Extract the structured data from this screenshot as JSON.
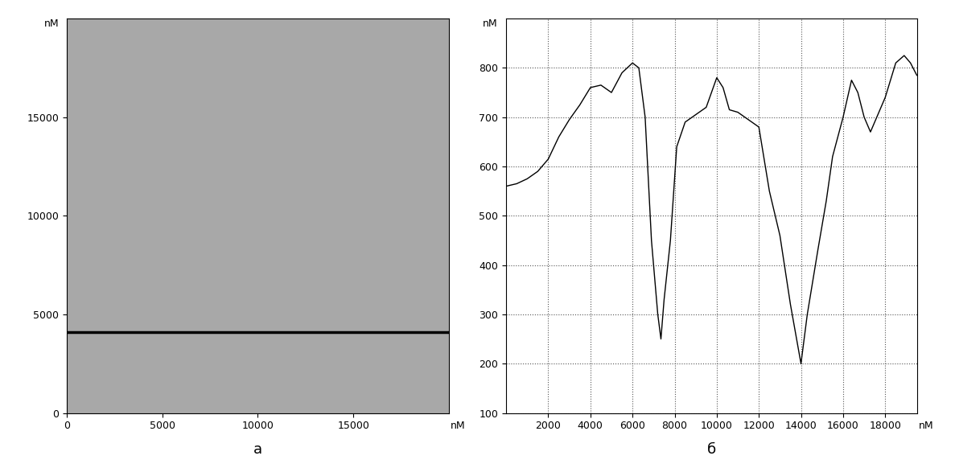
{
  "chart_data": [
    {
      "type": "line",
      "title": "а",
      "x_label": "nM",
      "y_label": "nM",
      "x": [
        0,
        20000
      ],
      "values": [
        4100,
        4100
      ],
      "color": "#000000",
      "xlim": [
        0,
        20000
      ],
      "ylim": [
        0,
        20000
      ],
      "xticks": [
        0,
        5000,
        10000,
        15000
      ],
      "yticks": [
        0,
        5000,
        10000,
        15000
      ],
      "grid": false
    },
    {
      "type": "line",
      "title": "б",
      "x_label": "nM",
      "y_label": "nM",
      "x": [
        0,
        500,
        1000,
        1500,
        2000,
        2500,
        3000,
        3500,
        4000,
        4500,
        5000,
        5500,
        6000,
        6300,
        6600,
        6900,
        7200,
        7350,
        7500,
        7800,
        8100,
        8500,
        9000,
        9500,
        10000,
        10300,
        10600,
        11000,
        11500,
        12000,
        12500,
        13000,
        13500,
        14000,
        14300,
        14800,
        15200,
        15500,
        16000,
        16400,
        16700,
        17000,
        17300,
        17600,
        18000,
        18500,
        18900,
        19200,
        19500
      ],
      "values": [
        560,
        565,
        575,
        590,
        615,
        660,
        695,
        725,
        760,
        765,
        750,
        790,
        810,
        800,
        700,
        450,
        300,
        250,
        330,
        450,
        640,
        690,
        705,
        720,
        780,
        760,
        715,
        710,
        695,
        680,
        550,
        460,
        320,
        200,
        300,
        430,
        530,
        620,
        700,
        775,
        750,
        700,
        670,
        700,
        740,
        810,
        825,
        810,
        785
      ],
      "color": "#000000",
      "xlim": [
        0,
        19500
      ],
      "ylim": [
        100,
        900
      ],
      "xticks": [
        2000,
        4000,
        6000,
        8000,
        10000,
        12000,
        14000,
        16000,
        18000
      ],
      "yticks": [
        100,
        200,
        300,
        400,
        500,
        600,
        700,
        800
      ],
      "grid": true
    }
  ]
}
